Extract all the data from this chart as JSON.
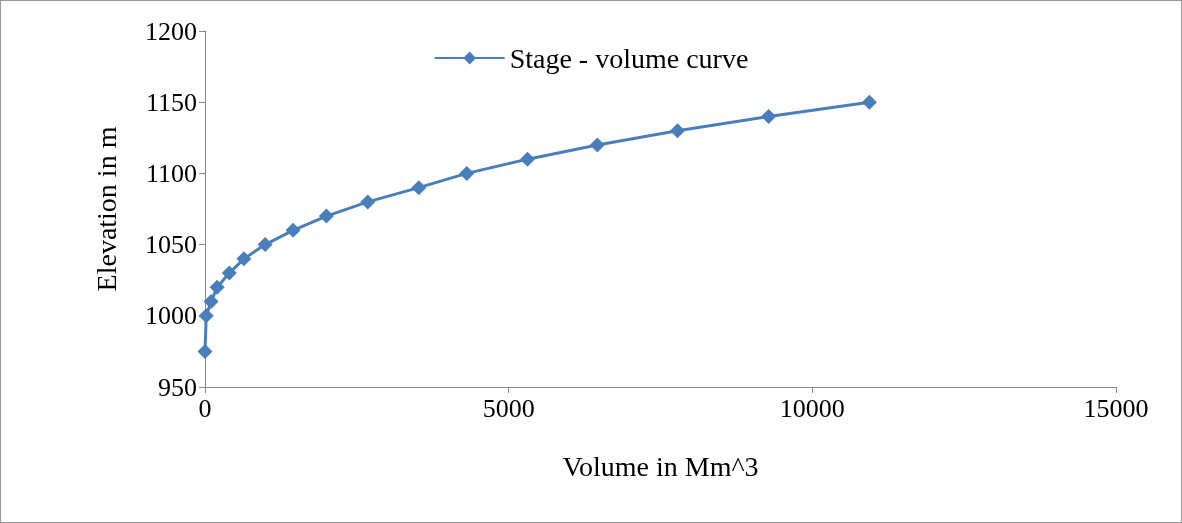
{
  "chart_data": {
    "type": "line",
    "xlabel": "Volume in Mm^3",
    "ylabel": "Elevation in m",
    "x": [
      0,
      20,
      100,
      200,
      400,
      640,
      990,
      1450,
      2000,
      2680,
      3520,
      4310,
      5310,
      6460,
      7780,
      9280,
      10940
    ],
    "series": [
      {
        "name": "Stage - volume curve",
        "color": "#4a7ebb",
        "values": [
          975,
          1000,
          1010,
          1020,
          1030,
          1040,
          1050,
          1060,
          1070,
          1080,
          1090,
          1100,
          1110,
          1120,
          1130,
          1140,
          1150
        ]
      }
    ],
    "xlim": [
      0,
      15000
    ],
    "xticks": [
      0,
      5000,
      10000,
      15000
    ],
    "ylim": [
      950,
      1200
    ],
    "yticks": [
      950,
      1000,
      1050,
      1100,
      1150,
      1200
    ],
    "grid": false,
    "legend": "top",
    "marker": "diamond",
    "line_style": "solid"
  }
}
